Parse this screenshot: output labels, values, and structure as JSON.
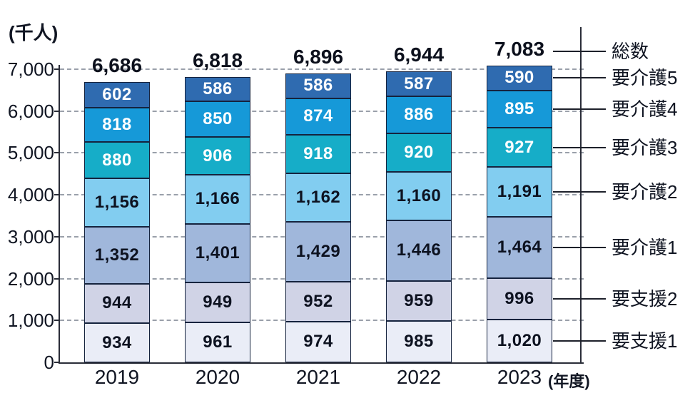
{
  "chart_data": {
    "type": "bar",
    "stacked": true,
    "title": "",
    "unit_label": "(千人)",
    "x_axis_suffix": "(年度)",
    "categories": [
      "2019",
      "2020",
      "2021",
      "2022",
      "2023"
    ],
    "series": [
      {
        "name": "要支援1",
        "values": [
          934,
          961,
          974,
          985,
          1020
        ],
        "color": "#eaedf7",
        "label_color": "#0d1220"
      },
      {
        "name": "要支援2",
        "values": [
          944,
          949,
          952,
          959,
          996
        ],
        "color": "#d0d3e6",
        "label_color": "#0d1220"
      },
      {
        "name": "要介護1",
        "values": [
          1352,
          1401,
          1429,
          1446,
          1464
        ],
        "color": "#a0b7db",
        "label_color": "#0d1220"
      },
      {
        "name": "要介護2",
        "values": [
          1156,
          1166,
          1162,
          1160,
          1191
        ],
        "color": "#82cdf0",
        "label_color": "#0d1220"
      },
      {
        "name": "要介護3",
        "values": [
          880,
          906,
          918,
          920,
          927
        ],
        "color": "#16adc8",
        "label_color": "#ffffff"
      },
      {
        "name": "要介護4",
        "values": [
          818,
          850,
          874,
          886,
          895
        ],
        "color": "#1699d8",
        "label_color": "#ffffff"
      },
      {
        "name": "要介護5",
        "values": [
          602,
          586,
          586,
          587,
          590
        ],
        "color": "#2f6bb0",
        "label_color": "#ffffff"
      }
    ],
    "totals": [
      6686,
      6818,
      6896,
      6944,
      7083
    ],
    "totals_label": "総数",
    "legend_labels": [
      "総数",
      "要介護5",
      "要介護4",
      "要介護3",
      "要介護2",
      "要介護1",
      "要支援2",
      "要支援1"
    ],
    "legend_position": "right",
    "y_ticks": [
      "0",
      "1,000",
      "2,000",
      "3,000",
      "4,000",
      "5,000",
      "6,000",
      "7,000"
    ],
    "ylim": [
      0,
      7000
    ],
    "grid": "dashed",
    "colors": {
      "bar_border": "#15233e",
      "gridline": "#9aa0aa",
      "axis": "#2a2d38",
      "text": "#101522"
    }
  }
}
